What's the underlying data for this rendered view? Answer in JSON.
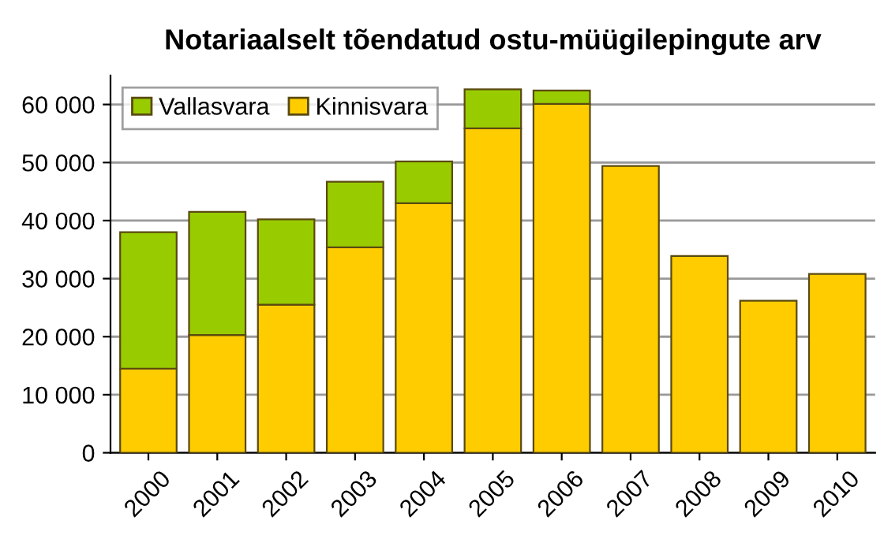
{
  "chart_data": {
    "type": "bar",
    "title": "Notariaalselt tõendatud ostu-müügilepingute arv",
    "categories": [
      "2000",
      "2001",
      "2002",
      "2003",
      "2004",
      "2005",
      "2006",
      "2007",
      "2008",
      "2009",
      "2010"
    ],
    "stacked": true,
    "series": [
      {
        "name": "Kinnisvara",
        "color": "#ffcc00",
        "values": [
          14500,
          20300,
          25500,
          35400,
          43000,
          55900,
          60100,
          49400,
          33900,
          26200,
          30800
        ]
      },
      {
        "name": "Vallasvara",
        "color": "#99cc00",
        "values": [
          23500,
          21200,
          14700,
          11300,
          7200,
          6700,
          2300,
          null,
          null,
          null,
          null
        ]
      }
    ],
    "ylim": [
      0,
      65000
    ],
    "yticks": [
      {
        "value": 0,
        "label": "0"
      },
      {
        "value": 10000,
        "label": "10 000"
      },
      {
        "value": 20000,
        "label": "20 000"
      },
      {
        "value": 30000,
        "label": "30 000"
      },
      {
        "value": 40000,
        "label": "40 000"
      },
      {
        "value": 50000,
        "label": "50 000"
      },
      {
        "value": 60000,
        "label": "60 000"
      }
    ],
    "grid": "y",
    "legend": "top left"
  }
}
